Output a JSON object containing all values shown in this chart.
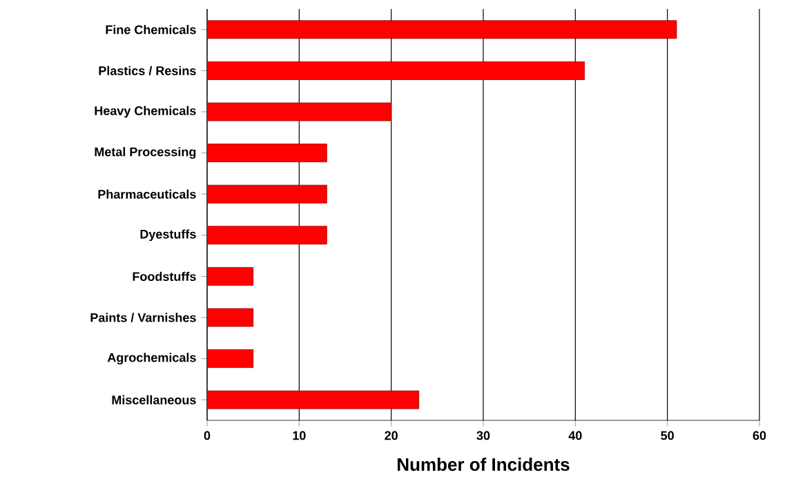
{
  "chart_data": {
    "type": "bar",
    "orientation": "horizontal",
    "categories": [
      "Fine Chemicals",
      "Plastics / Resins",
      "Heavy Chemicals",
      "Metal Processing",
      "Pharmaceuticals",
      "Dyestuffs",
      "Foodstuffs",
      "Paints / Varnishes",
      "Agrochemicals",
      "Miscellaneous"
    ],
    "values": [
      51,
      41,
      20,
      13,
      13,
      13,
      5,
      5,
      5,
      23
    ],
    "color": "#ff0000",
    "xlabel": "Number of Incidents",
    "xlim": [
      0,
      60
    ],
    "xticks": [
      0,
      10,
      20,
      30,
      40,
      50,
      60
    ],
    "grid": "x"
  }
}
